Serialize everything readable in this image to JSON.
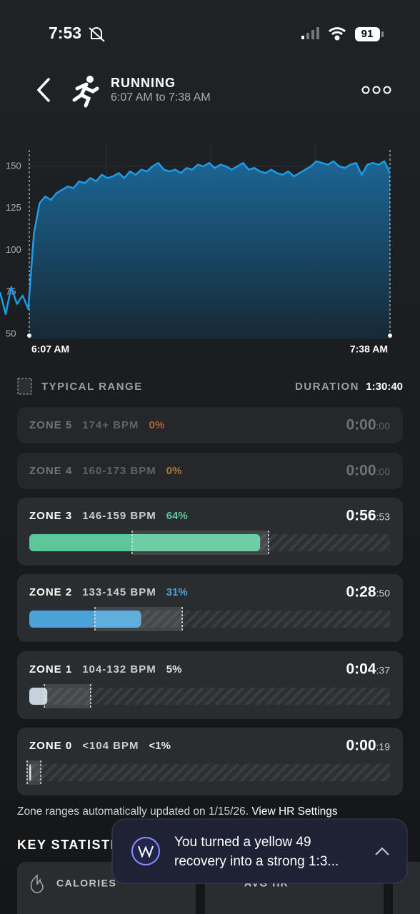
{
  "status_bar": {
    "time": "7:53",
    "battery": "91"
  },
  "header": {
    "title": "RUNNING",
    "subtitle": "6:07 AM to 7:38 AM"
  },
  "hr_chart": {
    "type": "line",
    "color": "#1e9be8",
    "values": [
      75,
      62,
      78,
      68,
      73,
      65,
      110,
      128,
      132,
      130,
      134,
      136,
      138,
      137,
      141,
      140,
      143,
      141,
      145,
      143,
      144,
      146,
      143,
      147,
      145,
      148,
      147,
      150,
      152,
      148,
      147,
      148,
      146,
      149,
      148,
      151,
      150,
      152,
      149,
      151,
      150,
      148,
      150,
      152,
      148,
      149,
      147,
      146,
      148,
      146,
      145,
      147,
      144,
      146,
      148,
      150,
      153,
      152,
      151,
      153,
      150,
      149,
      151,
      152,
      145,
      151,
      152,
      151,
      153,
      146
    ],
    "ylim": [
      47,
      164
    ],
    "yticks": [
      50,
      75,
      100,
      125,
      150
    ],
    "start_label": "6:07 AM",
    "end_label": "7:38 AM"
  },
  "zones_header": {
    "legend": "TYPICAL RANGE",
    "duration_label": "DURATION",
    "duration": "1:30:40"
  },
  "zones": [
    {
      "name": "ZONE 5",
      "range": "174+ BPM",
      "percent_label": "0%",
      "time": "0:00",
      "seconds": ":00",
      "color": "#b5603c"
    },
    {
      "name": "ZONE 4",
      "range": "160-173 BPM",
      "percent_label": "0%",
      "time": "0:00",
      "seconds": ":00",
      "color": "#a8773f"
    },
    {
      "name": "ZONE 3",
      "range": "146-159 BPM",
      "percent": 64,
      "percent_label": "64%",
      "time": "0:56",
      "seconds": ":53",
      "color": "#5cc79a",
      "typical_range": [
        28.5,
        66.3
      ]
    },
    {
      "name": "ZONE 2",
      "range": "133-145 BPM",
      "percent": 31,
      "percent_label": "31%",
      "time": "0:28",
      "seconds": ":50",
      "color": "#4aa3d6",
      "typical_range": [
        18.2,
        42.4
      ]
    },
    {
      "name": "ZONE 1",
      "range": "104-132 BPM",
      "percent": 5,
      "percent_label": "5%",
      "time": "0:04",
      "seconds": ":37",
      "color": "#c5d3dc",
      "typical_range": [
        4.2,
        17
      ]
    },
    {
      "name": "ZONE 0",
      "range": "<104 BPM",
      "percent": 0.5,
      "percent_label": "<1%",
      "time": "0:00",
      "seconds": ":19",
      "color": "#d8dde0",
      "typical_range": [
        0,
        2.2
      ]
    }
  ],
  "footer": {
    "note": "Zone ranges automatically updated on 1/15/26.",
    "link": "View HR Settings"
  },
  "key_statistics": {
    "title": "KEY STATISTICS",
    "cards": [
      "CALORIES",
      "AVG HR"
    ]
  },
  "toast": {
    "line1": "You turned a yellow 49",
    "line2": "recovery into a strong 1:3..."
  }
}
